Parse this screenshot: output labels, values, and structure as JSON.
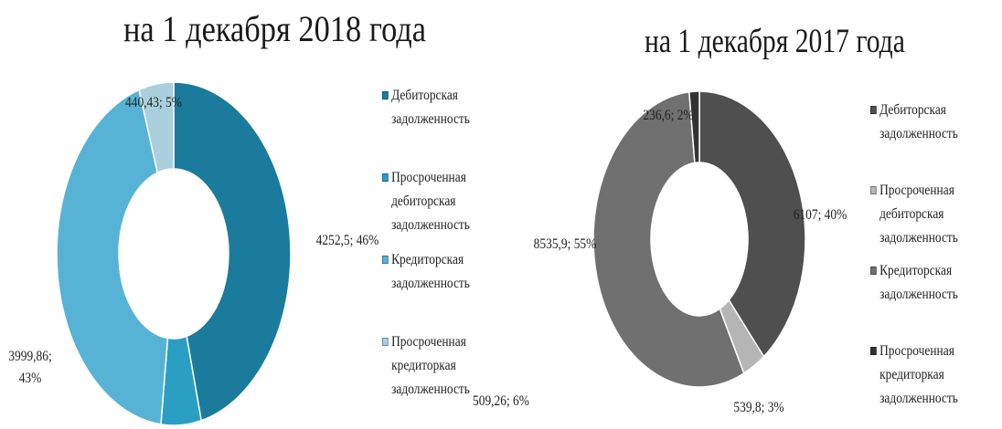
{
  "chart_data": [
    {
      "type": "pie",
      "title": "на 1 декабря 2018 года",
      "categories": [
        "Дебиторская задолженность",
        "Просроченная дебиторская задолженность",
        "Кредиторская задолженность",
        "Просроченная кредиторкая задолженность"
      ],
      "values": [
        4252.5,
        509.26,
        3999.86,
        440.43
      ],
      "percents": [
        46,
        6,
        43,
        5
      ],
      "data_labels": [
        "4252,5; 46%",
        "509,26; 6%",
        "3999,86;\n43%",
        "440,43; 5%"
      ],
      "colors": [
        "#1a7b9c",
        "#2b9fc3",
        "#57b3d6",
        "#a9cfdd"
      ],
      "legend": {
        "placement": "right",
        "items": [
          "Дебиторская\nзадолженность",
          "Просроченная\nдебиторская\nзадолженность",
          "Кредиторская\nзадолженность",
          "Просроченная\nкредиторкая\nзадолженность"
        ]
      }
    },
    {
      "type": "pie",
      "title": "на 1 декабря 2017 года",
      "categories": [
        "Дебиторская задолженность",
        "Просроченная дебиторская задолженность",
        "Кредиторская задолженность",
        "Просроченная кредиторкая задолженность"
      ],
      "values": [
        6107,
        539.8,
        8535.9,
        236.6
      ],
      "percents": [
        40,
        3,
        55,
        2
      ],
      "data_labels": [
        "6107; 40%",
        "539,8; 3%",
        "8535,9; 55%",
        "236,6; 2%"
      ],
      "colors": [
        "#4f4f4f",
        "#b5b5b5",
        "#707070",
        "#333333"
      ],
      "legend": {
        "placement": "right",
        "items": [
          "Дебиторская\nзадолженность",
          "Просроченная\nдебиторская\nзадолженность",
          "Кредиторская\nзадолженность",
          "Просроченная\nкредиторкая\nзадолженность"
        ]
      }
    }
  ]
}
